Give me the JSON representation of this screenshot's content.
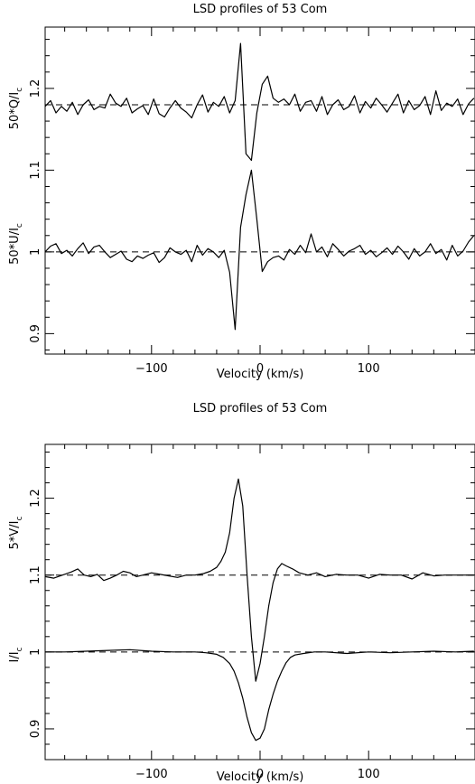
{
  "chart_data": [
    {
      "type": "line",
      "title": "LSD profiles of 53 Com",
      "xlabel": "Velocity (km/s)",
      "ylabels": [
        "50*Q/I",
        "50*U/I"
      ],
      "ylabel_subscript": "c",
      "xlim": [
        -198,
        198
      ],
      "ylim": [
        0.875,
        1.275
      ],
      "xticks": [
        -100,
        0,
        100
      ],
      "yticks": [
        0.9,
        1,
        1.1,
        1.2
      ],
      "reference_lines": [
        1.18,
        1.0
      ],
      "series": [
        {
          "x": [
            -198,
            -193,
            -188,
            -183,
            -178,
            -173,
            -168,
            -163,
            -158,
            -153,
            -148,
            -143,
            -138,
            -133,
            -128,
            -123,
            -118,
            -113,
            -108,
            -103,
            -98,
            -93,
            -88,
            -83,
            -78,
            -73,
            -68,
            -63,
            -58,
            -53,
            -48,
            -43,
            -38,
            -33,
            -28,
            -23,
            -18,
            -13,
            -8,
            -3,
            2,
            7,
            12,
            17,
            22,
            27,
            32,
            37,
            42,
            47,
            52,
            57,
            62,
            67,
            72,
            77,
            82,
            87,
            92,
            97,
            102,
            107,
            112,
            117,
            122,
            127,
            132,
            137,
            142,
            147,
            152,
            157,
            162,
            167,
            172,
            177,
            182,
            187,
            192,
            197
          ],
          "values": [
            1.178,
            1.185,
            1.17,
            1.178,
            1.172,
            1.183,
            1.168,
            1.18,
            1.186,
            1.174,
            1.178,
            1.176,
            1.193,
            1.182,
            1.178,
            1.188,
            1.17,
            1.175,
            1.179,
            1.168,
            1.187,
            1.169,
            1.165,
            1.176,
            1.185,
            1.176,
            1.171,
            1.164,
            1.18,
            1.192,
            1.171,
            1.183,
            1.178,
            1.19,
            1.17,
            1.185,
            1.255,
            1.12,
            1.112,
            1.17,
            1.205,
            1.215,
            1.188,
            1.183,
            1.187,
            1.18,
            1.193,
            1.172,
            1.183,
            1.185,
            1.172,
            1.19,
            1.168,
            1.18,
            1.186,
            1.174,
            1.178,
            1.191,
            1.17,
            1.184,
            1.176,
            1.188,
            1.18,
            1.171,
            1.182,
            1.193,
            1.17,
            1.185,
            1.174,
            1.179,
            1.19,
            1.168,
            1.197,
            1.173,
            1.182,
            1.178,
            1.187,
            1.168,
            1.181,
            1.188
          ]
        },
        {
          "x": [
            -198,
            -193,
            -188,
            -183,
            -178,
            -173,
            -168,
            -163,
            -158,
            -153,
            -148,
            -143,
            -138,
            -133,
            -128,
            -123,
            -118,
            -113,
            -108,
            -103,
            -98,
            -93,
            -88,
            -83,
            -78,
            -73,
            -68,
            -63,
            -58,
            -53,
            -48,
            -43,
            -38,
            -33,
            -28,
            -23,
            -18,
            -13,
            -8,
            -3,
            2,
            7,
            12,
            17,
            22,
            27,
            32,
            37,
            42,
            47,
            52,
            57,
            62,
            67,
            72,
            77,
            82,
            87,
            92,
            97,
            102,
            107,
            112,
            117,
            122,
            127,
            132,
            137,
            142,
            147,
            152,
            157,
            162,
            167,
            172,
            177,
            182,
            187,
            192,
            197
          ],
          "values": [
            1.0,
            1.007,
            1.01,
            0.998,
            1.002,
            0.995,
            1.004,
            1.011,
            0.998,
            1.006,
            1.008,
            1.0,
            0.993,
            0.997,
            1.001,
            0.991,
            0.988,
            0.995,
            0.992,
            0.996,
            0.999,
            0.987,
            0.993,
            1.005,
            1.0,
            0.997,
            1.002,
            0.988,
            1.008,
            0.996,
            1.004,
            1.0,
            0.993,
            1.002,
            0.975,
            0.905,
            1.03,
            1.07,
            1.1,
            1.04,
            0.976,
            0.988,
            0.993,
            0.995,
            0.99,
            1.003,
            0.997,
            1.008,
            0.999,
            1.022,
            1.0,
            1.006,
            0.994,
            1.01,
            1.003,
            0.995,
            1.001,
            1.004,
            1.008,
            0.997,
            1.002,
            0.994,
            0.999,
            1.005,
            0.997,
            1.007,
            1.0,
            0.991,
            1.004,
            0.995,
            1.0,
            1.01,
            0.998,
            1.003,
            0.99,
            1.008,
            0.995,
            1.001,
            1.012,
            1.02
          ]
        }
      ]
    },
    {
      "type": "line",
      "title": "LSD profiles of 53 Com",
      "xlabel": "Velocity (km/s)",
      "ylabels": [
        "5*V/I",
        "I/I"
      ],
      "ylabel_subscript": "c",
      "xlim": [
        -198,
        198
      ],
      "ylim": [
        0.86,
        1.27
      ],
      "xticks": [
        -100,
        0,
        100
      ],
      "yticks": [
        0.9,
        1,
        1.1,
        1.2
      ],
      "reference_lines": [
        1.1,
        1.0
      ],
      "series": [
        {
          "x": [
            -198,
            -190,
            -182,
            -174,
            -168,
            -162,
            -156,
            -150,
            -144,
            -138,
            -132,
            -126,
            -120,
            -114,
            -108,
            -100,
            -92,
            -84,
            -76,
            -68,
            -60,
            -52,
            -46,
            -40,
            -36,
            -32,
            -28,
            -24,
            -20,
            -16,
            -12,
            -8,
            -4,
            0,
            4,
            8,
            12,
            16,
            20,
            24,
            30,
            36,
            44,
            52,
            60,
            70,
            80,
            90,
            100,
            110,
            120,
            130,
            140,
            150,
            160,
            170,
            180,
            190,
            197
          ],
          "values": [
            1.098,
            1.096,
            1.1,
            1.104,
            1.108,
            1.1,
            1.098,
            1.101,
            1.093,
            1.096,
            1.1,
            1.105,
            1.103,
            1.098,
            1.1,
            1.103,
            1.101,
            1.099,
            1.097,
            1.1,
            1.1,
            1.102,
            1.105,
            1.11,
            1.118,
            1.13,
            1.155,
            1.2,
            1.225,
            1.19,
            1.1,
            1.02,
            0.962,
            0.985,
            1.02,
            1.06,
            1.09,
            1.108,
            1.115,
            1.112,
            1.108,
            1.103,
            1.1,
            1.103,
            1.098,
            1.101,
            1.1,
            1.1,
            1.096,
            1.101,
            1.1,
            1.1,
            1.095,
            1.103,
            1.099,
            1.1,
            1.1,
            1.1,
            1.1
          ]
        },
        {
          "x": [
            -198,
            -180,
            -160,
            -140,
            -120,
            -100,
            -80,
            -60,
            -50,
            -40,
            -34,
            -28,
            -24,
            -20,
            -16,
            -12,
            -8,
            -4,
            0,
            4,
            8,
            12,
            16,
            20,
            24,
            28,
            32,
            40,
            50,
            60,
            80,
            100,
            120,
            140,
            160,
            180,
            197
          ],
          "values": [
            1.0,
            1.0,
            1.001,
            1.002,
            1.003,
            1.001,
            1.0,
            1.0,
            0.999,
            0.997,
            0.993,
            0.985,
            0.975,
            0.96,
            0.94,
            0.915,
            0.895,
            0.885,
            0.888,
            0.9,
            0.925,
            0.945,
            0.962,
            0.975,
            0.986,
            0.993,
            0.996,
            0.998,
            1.0,
            1.0,
            0.998,
            1.0,
            0.999,
            1.0,
            1.001,
            1.0,
            1.001
          ]
        }
      ]
    }
  ]
}
